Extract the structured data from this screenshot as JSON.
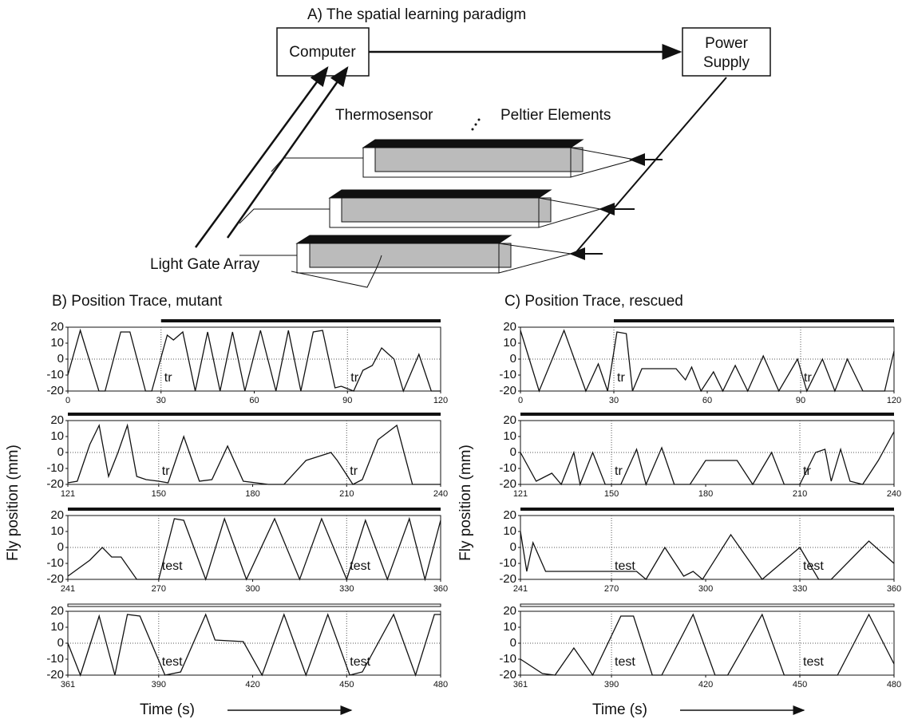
{
  "diagram": {
    "title": "A) The spatial learning paradigm",
    "nodes": [
      {
        "label_lines": [
          "Computer"
        ]
      },
      {
        "label_lines": [
          "Power",
          "Supply"
        ]
      }
    ],
    "labels": [
      "Thermosensor",
      "Peltier Elements",
      "Light Gate Array"
    ]
  },
  "chart_data": [
    {
      "type": "line",
      "title": "B) Position Trace, mutant",
      "ylabel": "Fly position (mm)",
      "x": [
        0,
        4,
        10,
        12,
        17,
        20,
        25,
        27,
        32,
        34,
        37,
        41,
        45,
        49,
        53,
        57,
        62,
        67,
        71,
        75,
        79,
        82,
        86,
        88,
        92,
        95,
        98,
        101,
        105,
        108,
        113,
        117,
        120
      ],
      "values": [
        -10,
        18,
        -20,
        -20,
        17,
        17,
        -20,
        -20,
        15,
        12,
        17,
        -20,
        17,
        -20,
        17,
        -20,
        18,
        -20,
        18,
        -20,
        17,
        18,
        -18,
        -17,
        -20,
        -7,
        -4,
        7,
        0,
        -20,
        3,
        -20,
        -20
      ],
      "xlim": [
        0,
        120
      ],
      "xticks": [
        0,
        30,
        60,
        90,
        120
      ],
      "ylim": [
        -20,
        20
      ],
      "yticks": [
        20,
        10,
        0,
        -10,
        -20
      ],
      "annotations": [
        "tr",
        "tr"
      ]
    },
    {
      "type": "line",
      "x": [
        121,
        124,
        128,
        131,
        134,
        137,
        140,
        143,
        146,
        150,
        153,
        158,
        163,
        167,
        172,
        177,
        185,
        190,
        197,
        205,
        207,
        212,
        215,
        220,
        226,
        231,
        240
      ],
      "values": [
        -19,
        -18,
        5,
        17,
        -15,
        0,
        17,
        -15,
        -17,
        -18,
        -19,
        10,
        -18,
        -17,
        4,
        -18,
        -20,
        -20,
        -5,
        0,
        -5,
        -20,
        -17,
        8,
        17,
        -20,
        -20
      ],
      "xlim": [
        121,
        240
      ],
      "xticks": [
        121,
        150,
        180,
        210,
        240
      ],
      "ylim": [
        -20,
        20
      ],
      "yticks": [
        20,
        10,
        0,
        -10,
        -20
      ],
      "annotations": [
        "tr",
        "tr"
      ]
    },
    {
      "type": "line",
      "x": [
        241,
        248,
        252,
        255,
        258,
        263,
        270,
        275,
        278,
        285,
        291,
        298,
        307,
        315,
        322,
        330,
        336,
        343,
        350,
        355,
        360
      ],
      "values": [
        -18,
        -8,
        0,
        -6,
        -6,
        -20,
        -20,
        18,
        17,
        -20,
        18,
        -20,
        18,
        -20,
        18,
        -20,
        17,
        -20,
        18,
        -20,
        17
      ],
      "xlim": [
        241,
        360
      ],
      "xticks": [
        241,
        270,
        300,
        330,
        360
      ],
      "ylim": [
        -20,
        20
      ],
      "yticks": [
        20,
        10,
        0,
        -10,
        -20
      ],
      "annotations": [
        "test",
        "test"
      ]
    },
    {
      "type": "line",
      "xlabel": "Time (s)",
      "x": [
        361,
        365,
        371,
        376,
        380,
        384,
        392,
        397,
        405,
        408,
        417,
        423,
        430,
        437,
        444,
        451,
        455,
        465,
        472,
        478,
        480
      ],
      "values": [
        0,
        -20,
        17,
        -20,
        18,
        17,
        -20,
        -18,
        18,
        2,
        1,
        -20,
        18,
        -20,
        18,
        -20,
        -18,
        18,
        -20,
        18,
        18
      ],
      "xlim": [
        361,
        480
      ],
      "xticks": [
        361,
        390,
        420,
        450,
        480
      ],
      "ylim": [
        -20,
        20
      ],
      "yticks": [
        20,
        10,
        0,
        -10,
        -20
      ],
      "annotations": [
        "test",
        "test"
      ]
    },
    {
      "type": "line",
      "title": "C) Position Trace, rescued",
      "ylabel": "Fly position (mm)",
      "x": [
        0,
        6,
        14,
        21,
        25,
        28,
        31,
        34,
        36,
        39,
        50,
        53,
        55,
        58,
        62,
        65,
        69,
        73,
        78,
        83,
        89,
        92,
        97,
        101,
        105,
        110,
        117,
        120
      ],
      "values": [
        18,
        -20,
        18,
        -20,
        -3,
        -20,
        17,
        16,
        -20,
        -6,
        -6,
        -13,
        -5,
        -20,
        -8,
        -20,
        -4,
        -20,
        2,
        -20,
        0,
        -20,
        0,
        -20,
        0,
        -20,
        -20,
        5
      ],
      "xlim": [
        0,
        120
      ],
      "xticks": [
        0,
        30,
        60,
        90,
        120
      ],
      "ylim": [
        -20,
        20
      ],
      "yticks": [
        20,
        10,
        0,
        -10,
        -20
      ],
      "annotations": [
        "tr",
        "tr"
      ]
    },
    {
      "type": "line",
      "x": [
        121,
        126,
        131,
        134,
        138,
        140,
        144,
        148,
        153,
        158,
        161,
        166,
        170,
        175,
        180,
        190,
        195,
        201,
        205,
        210,
        215,
        218,
        220,
        223,
        226,
        230,
        235,
        240
      ],
      "values": [
        0,
        -18,
        -13,
        -20,
        0,
        -20,
        0,
        -20,
        -20,
        2,
        -20,
        3,
        -20,
        -20,
        -5,
        -5,
        -20,
        0,
        -20,
        -20,
        0,
        2,
        -18,
        2,
        -18,
        -20,
        -5,
        13
      ],
      "xlim": [
        121,
        240
      ],
      "xticks": [
        121,
        150,
        180,
        210,
        240
      ],
      "ylim": [
        -20,
        20
      ],
      "yticks": [
        20,
        10,
        0,
        -10,
        -20
      ],
      "annotations": [
        "tr",
        "tr"
      ]
    },
    {
      "type": "line",
      "x": [
        241,
        243,
        245,
        249,
        270,
        278,
        281,
        287,
        293,
        296,
        299,
        308,
        318,
        330,
        336,
        340,
        352,
        360
      ],
      "values": [
        10,
        -15,
        3,
        -15,
        -15,
        -15,
        -20,
        0,
        -18,
        -15,
        -20,
        8,
        -20,
        0,
        -20,
        -20,
        4,
        -10
      ],
      "xlim": [
        241,
        360
      ],
      "xticks": [
        241,
        270,
        300,
        330,
        360
      ],
      "ylim": [
        -20,
        20
      ],
      "yticks": [
        20,
        10,
        0,
        -10,
        -20
      ],
      "annotations": [
        "test",
        "test"
      ]
    },
    {
      "type": "line",
      "xlabel": "Time (s)",
      "x": [
        361,
        368,
        372,
        378,
        384,
        393,
        397,
        403,
        406,
        416,
        423,
        427,
        438,
        445,
        462,
        472,
        480
      ],
      "values": [
        -10,
        -19,
        -20,
        -3,
        -20,
        17,
        17,
        -20,
        -20,
        18,
        -20,
        -20,
        18,
        -20,
        -20,
        18,
        -13
      ],
      "xlim": [
        361,
        480
      ],
      "xticks": [
        361,
        390,
        420,
        450,
        480
      ],
      "ylim": [
        -20,
        20
      ],
      "yticks": [
        20,
        10,
        0,
        -10,
        -20
      ],
      "annotations": [
        "test",
        "test"
      ]
    }
  ]
}
